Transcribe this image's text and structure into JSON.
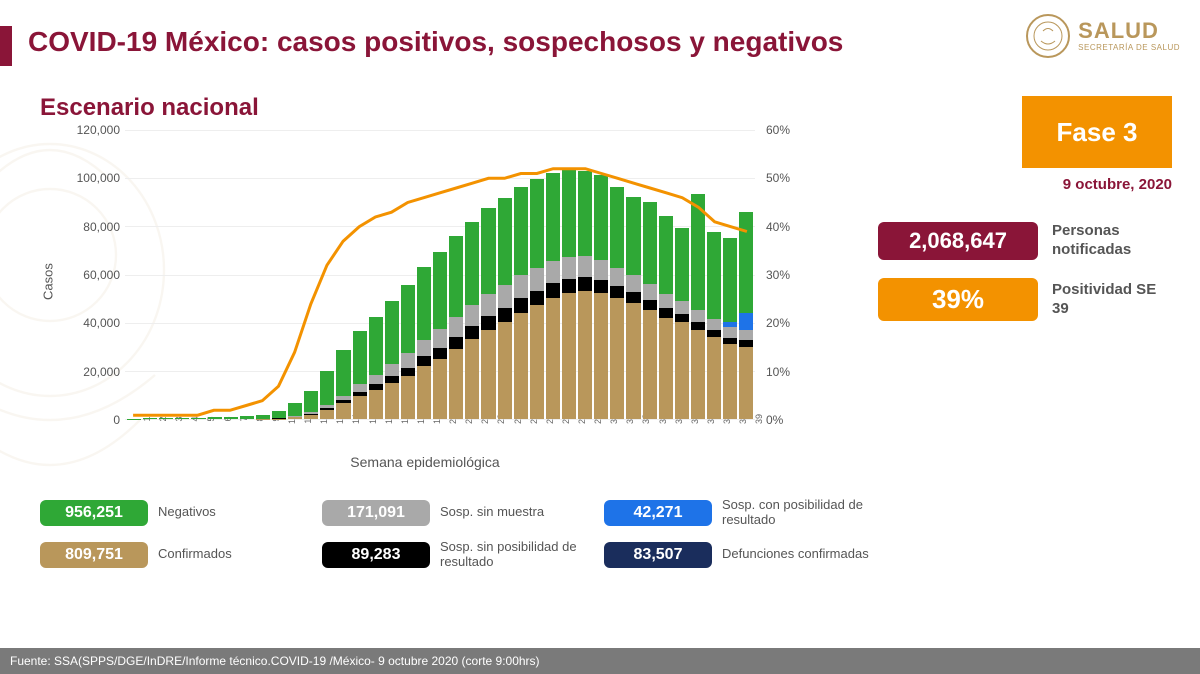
{
  "title": "COVID-19 México: casos positivos, sospechosos y negativos",
  "subtitle": "Escenario nacional",
  "logo": {
    "main": "SALUD",
    "sub": "SECRETARÍA DE SALUD"
  },
  "phase": {
    "label": "Fase 3",
    "bg": "#f39200"
  },
  "date": "9 octubre, 2020",
  "stats": {
    "notified": {
      "value": "2,068,647",
      "label": "Personas notificadas",
      "bg": "#8a1538"
    },
    "positivity": {
      "value": "39%",
      "label": "Positividad SE 39",
      "bg": "#f39200"
    }
  },
  "legend": {
    "negativos": {
      "value": "956,251",
      "label": "Negativos",
      "bg": "#2fa836"
    },
    "confirmados": {
      "value": "809,751",
      "label": "Confirmados",
      "bg": "#b9975b"
    },
    "sosp_sin_muestra": {
      "value": "171,091",
      "label": "Sosp. sin muestra",
      "bg": "#a9a9a9"
    },
    "sosp_sin_posib": {
      "value": "89,283",
      "label": "Sosp. sin posibilidad de resultado",
      "bg": "#000000"
    },
    "sosp_con_posib": {
      "value": "42,271",
      "label": "Sosp. con posibilidad de resultado",
      "bg": "#1e73e8"
    },
    "defunciones": {
      "value": "83,507",
      "label": "Defunciones confirmadas",
      "bg": "#1a2d5c"
    }
  },
  "chart": {
    "type": "stacked-bar+line",
    "xaxis_title": "Semana epidemiológica",
    "yaxis_left_title": "Casos",
    "y_left": {
      "min": 0,
      "max": 120000,
      "step": 20000,
      "ticks": [
        "0",
        "20,000",
        "40,000",
        "60,000",
        "80,000",
        "100,000",
        "120,000"
      ]
    },
    "y_right": {
      "min": 0,
      "max": 60,
      "step": 10,
      "ticks": [
        "0%",
        "10%",
        "20%",
        "30%",
        "40%",
        "50%",
        "60%"
      ]
    },
    "colors": {
      "confirmados": "#b9975b",
      "sosp_sin_posib": "#000000",
      "sosp_sin_muestra": "#a9a9a9",
      "sosp_con_posib": "#1e73e8",
      "negativos": "#2fa836",
      "line": "#f39200",
      "grid": "#eeeeee",
      "axis_text": "#555555"
    },
    "line_width": 3,
    "categories": [
      "1",
      "2",
      "3",
      "4",
      "5",
      "6",
      "7",
      "8",
      "9",
      "10",
      "11",
      "12",
      "13",
      "14",
      "15",
      "16",
      "17",
      "18",
      "19",
      "20",
      "21",
      "22",
      "23",
      "24",
      "25",
      "26",
      "27",
      "28",
      "29",
      "30",
      "31",
      "32",
      "33",
      "34",
      "35",
      "36",
      "37",
      "38",
      "39"
    ],
    "series": {
      "confirmados": [
        0,
        0,
        0,
        0,
        0,
        0,
        0,
        0,
        50,
        200,
        700,
        1800,
        3800,
        6500,
        9500,
        12000,
        15000,
        18000,
        22000,
        25000,
        29000,
        33000,
        37000,
        40000,
        44000,
        47000,
        50000,
        52000,
        53000,
        52000,
        50000,
        48000,
        45000,
        42000,
        40000,
        37000,
        34000,
        31000,
        30000
      ],
      "sosp_sin_posib": [
        0,
        0,
        0,
        0,
        0,
        0,
        0,
        0,
        0,
        50,
        150,
        350,
        700,
        1200,
        1800,
        2300,
        2800,
        3300,
        3900,
        4400,
        4900,
        5300,
        5600,
        5900,
        6000,
        6100,
        6100,
        6000,
        5800,
        5500,
        5100,
        4700,
        4300,
        3900,
        3500,
        3100,
        2800,
        2600,
        2500
      ],
      "sosp_sin_muestra": [
        0,
        0,
        0,
        0,
        0,
        0,
        0,
        0,
        0,
        100,
        300,
        600,
        1200,
        2000,
        3000,
        4000,
        5000,
        6000,
        7000,
        7800,
        8400,
        8900,
        9300,
        9500,
        9600,
        9600,
        9400,
        9100,
        8700,
        8200,
        7600,
        7000,
        6400,
        5800,
        5300,
        4900,
        4600,
        4400,
        4300
      ],
      "sosp_con_posib": [
        0,
        0,
        0,
        0,
        0,
        0,
        0,
        0,
        0,
        0,
        0,
        0,
        0,
        0,
        0,
        0,
        0,
        0,
        0,
        0,
        0,
        0,
        0,
        0,
        0,
        0,
        0,
        0,
        0,
        0,
        0,
        0,
        0,
        0,
        0,
        0,
        0,
        2000,
        7000
      ],
      "negativos": [
        200,
        300,
        400,
        500,
        600,
        800,
        1000,
        1300,
        1800,
        3000,
        5500,
        9000,
        14000,
        19000,
        22000,
        24000,
        26000,
        28000,
        30000,
        32000,
        33500,
        34500,
        35500,
        36000,
        36500,
        36800,
        36500,
        36000,
        35000,
        35400,
        33200,
        32200,
        34200,
        32200,
        30100,
        48000,
        36000,
        34800,
        42000
      ]
    },
    "positivity_line": [
      1,
      1,
      1,
      1,
      1,
      2,
      2,
      3,
      4,
      7,
      14,
      24,
      32,
      37,
      40,
      42,
      43,
      45,
      46,
      47,
      48,
      49,
      50,
      50,
      51,
      51,
      52,
      52,
      52,
      51,
      50,
      49,
      48,
      47,
      46,
      44,
      41,
      40,
      39
    ]
  },
  "footer": "Fuente: SSA(SPPS/DGE/InDRE/Informe técnico.COVID-19 /México- 9 octubre 2020 (corte 9:00hrs)"
}
